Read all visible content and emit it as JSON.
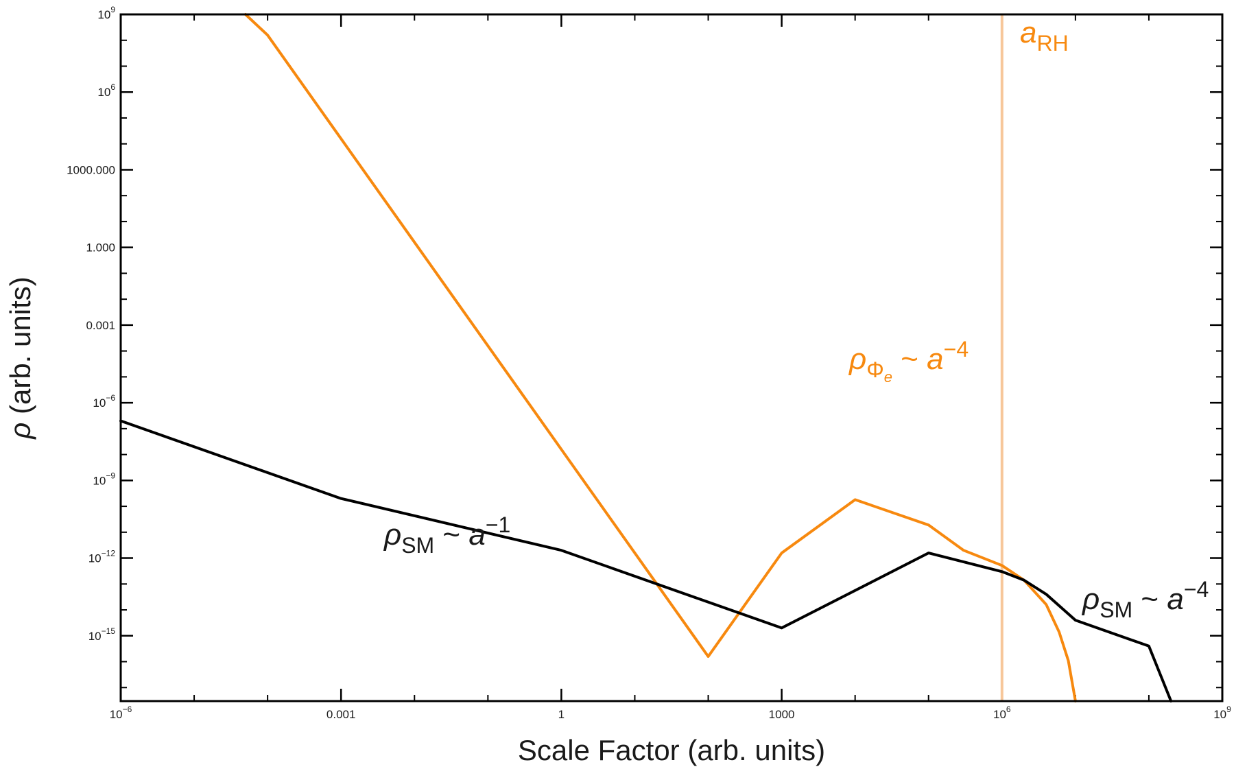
{
  "chart_data": {
    "type": "line",
    "x_scale": "log",
    "y_scale": "log",
    "xlim": [
      1e-06,
      1000000000.0
    ],
    "ylim": [
      3e-18,
      1000000000.0
    ],
    "xlabel": "Scale Factor (arb. units)",
    "ylabel": "ρ (arb. units)",
    "grid": false,
    "x_ticks": [
      {
        "value": 1e-06,
        "base": "10",
        "exp": "−6"
      },
      {
        "value": 0.001,
        "text": "0.001"
      },
      {
        "value": 1,
        "text": "1"
      },
      {
        "value": 1000,
        "text": "1000"
      },
      {
        "value": 1000000.0,
        "base": "10",
        "exp": "6"
      },
      {
        "value": 1000000000.0,
        "base": "10",
        "exp": "9"
      }
    ],
    "y_ticks": [
      {
        "value": 1000000000.0,
        "base": "10",
        "exp": "9"
      },
      {
        "value": 1000000.0,
        "base": "10",
        "exp": "6"
      },
      {
        "value": 1000,
        "text": "1000.000"
      },
      {
        "value": 1,
        "text": "1.000"
      },
      {
        "value": 0.001,
        "text": "0.001"
      },
      {
        "value": 1e-06,
        "base": "10",
        "exp": "−6"
      },
      {
        "value": 1e-09,
        "base": "10",
        "exp": "−9"
      },
      {
        "value": 1e-12,
        "base": "10",
        "exp": "−12"
      },
      {
        "value": 1e-15,
        "base": "10",
        "exp": "−15"
      }
    ],
    "series": [
      {
        "color": "#f7890f",
        "points": [
          [
            5e-05,
            1000000000.0
          ],
          [
            0.0001,
            158000000.0
          ],
          [
            0.001,
            15800.0
          ],
          [
            0.01,
            1.58
          ],
          [
            1,
            1.58e-08
          ],
          [
            100,
            1.58e-16
          ],
          [
            1000,
            1.58e-12
          ],
          [
            10000.0,
            1.8e-10
          ],
          [
            100000.0,
            1.9e-11
          ],
          [
            300000.0,
            2e-12
          ],
          [
            1000000.0,
            5.2e-13
          ],
          [
            2000000.0,
            1.4e-13
          ],
          [
            4000000.0,
            1.6e-14
          ],
          [
            6000000.0,
            1.4e-15
          ],
          [
            8000000.0,
            1.1e-16
          ],
          [
            10000000.0,
            3e-18
          ]
        ]
      },
      {
        "color": "#000000",
        "points": [
          [
            1e-06,
            2e-07
          ],
          [
            0.001,
            2e-10
          ],
          [
            1,
            2e-12
          ],
          [
            1000,
            2e-15
          ],
          [
            100000.0,
            1.58e-12
          ],
          [
            1000000.0,
            3e-13
          ],
          [
            2000000.0,
            1.4e-13
          ],
          [
            4000000.0,
            4e-14
          ],
          [
            10000000.0,
            4e-15
          ],
          [
            100000000.0,
            4e-16
          ],
          [
            200000000.0,
            3e-18
          ]
        ]
      }
    ],
    "vertical_line": {
      "x": 1000000.0,
      "color": "#f7c79a"
    },
    "annotations": {
      "a_rh": {
        "base": "a",
        "sub": "RH",
        "color": "#f7890f"
      },
      "rho_phi": {
        "base": "ρ",
        "sub": "Φ",
        "subsub": "e",
        "rel": " ~ ",
        "var": "a",
        "exp": "−4",
        "color": "#f7890f"
      },
      "rho_sm_1": {
        "base": "ρ",
        "sub": "SM",
        "rel": " ~ ",
        "var": "a",
        "exp": "−1",
        "color": "#1a1a1a"
      },
      "rho_sm_4": {
        "base": "ρ",
        "sub": "SM",
        "rel": " ~ ",
        "var": "a",
        "exp": "−4",
        "color": "#1a1a1a"
      }
    }
  }
}
